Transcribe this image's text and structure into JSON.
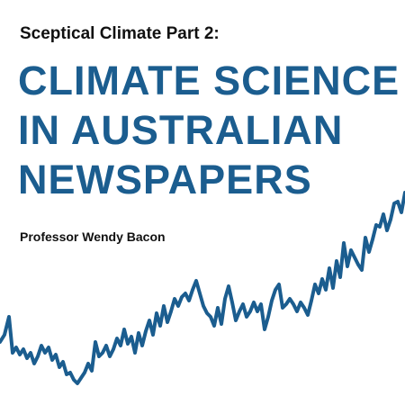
{
  "subtitle": "Sceptical Climate Part 2:",
  "title_lines": [
    "CLIMATE SCIENCE",
    "IN AUSTRALIAN",
    "NEWSPAPERS"
  ],
  "author": "Professor Wendy Bacon",
  "colors": {
    "background": "#ffffff",
    "title": "#1b5d8f",
    "text": "#111111",
    "line": "#1b5d8f"
  }
}
